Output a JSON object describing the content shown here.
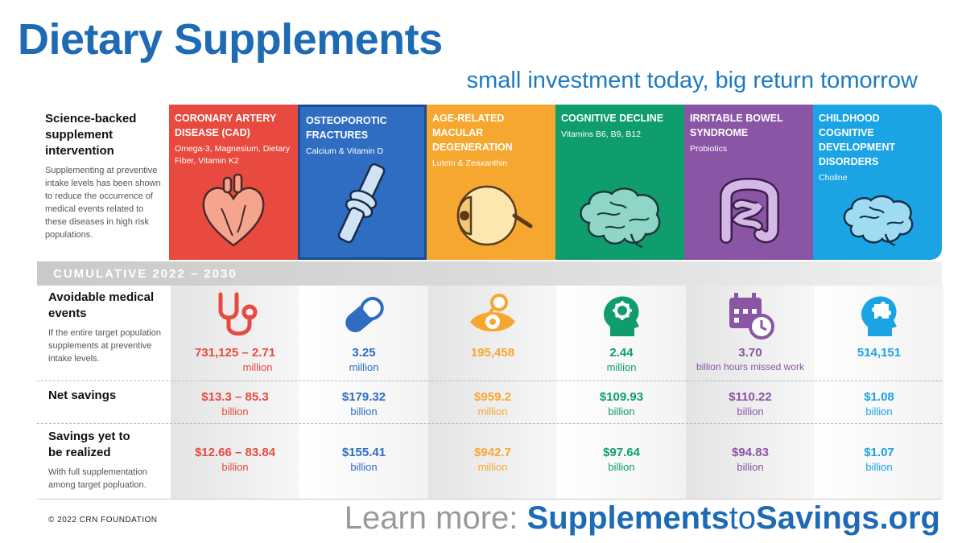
{
  "header": {
    "title": "Dietary Supplements",
    "subtitle": "small investment today, big return tomorrow"
  },
  "intro": {
    "heading": "Science-backed supplement intervention",
    "description": "Supplementing at preventive intake levels has been shown to reduce the occurrence of medical events related to these diseases in high risk populations."
  },
  "band": {
    "label": "CUMULATIVE 2022 – 2030"
  },
  "colors": {
    "cad": "#e84a3f",
    "osteo": "#2f6dc3",
    "macular": "#f6a72f",
    "cognitive": "#0f9d6e",
    "ibs": "#8a55a4",
    "child": "#1ba4e4"
  },
  "diseases": [
    {
      "name": "CORONARY ARTERY DISEASE (CAD)",
      "supplements": "Omega-3, Magnesium, Dietary Fiber, Vitamin K2",
      "icon": "heart-icon"
    },
    {
      "name": "OSTEOPOROTIC FRACTURES",
      "supplements": "Calcium & Vitamin D",
      "icon": "bone-joint-icon"
    },
    {
      "name": "AGE-RELATED MACULAR DEGENERATION",
      "supplements": "Lutein & Zeaxanthin",
      "icon": "eyeball-icon"
    },
    {
      "name": "COGNITIVE DECLINE",
      "supplements": "Vitamins B6, B9, B12",
      "icon": "brain-icon"
    },
    {
      "name": "IRRITABLE BOWEL SYNDROME",
      "supplements": "Probiotics",
      "icon": "intestine-icon"
    },
    {
      "name": "CHILDHOOD COGNITIVE DEVELOPMENT DISORDERS",
      "supplements": "Choline",
      "icon": "child-brain-icon"
    }
  ],
  "metrics": {
    "avoidable": {
      "heading": "Avoidable medical events",
      "description": "If the entire target population supplements at preventive intake levels.",
      "values": [
        {
          "value": "731,125 – 2.71",
          "unit": "million",
          "icon": "stethoscope-icon"
        },
        {
          "value": "3.25",
          "unit": "million",
          "icon": "pill-capsule-icon"
        },
        {
          "value": "195,458",
          "unit": "",
          "icon": "eye-exam-icon"
        },
        {
          "value": "2.44",
          "unit": "million",
          "icon": "head-gear-icon"
        },
        {
          "value": "3.70",
          "unit": "billion hours missed work",
          "icon": "calendar-clock-icon"
        },
        {
          "value": "514,151",
          "unit": "",
          "icon": "head-puzzle-icon"
        }
      ]
    },
    "net_savings": {
      "heading": "Net savings",
      "values": [
        {
          "value": "$13.3 – 85.3",
          "unit": "billion"
        },
        {
          "value": "$179.32",
          "unit": "billion"
        },
        {
          "value": "$959.2",
          "unit": "million"
        },
        {
          "value": "$109.93",
          "unit": "billion"
        },
        {
          "value": "$110.22",
          "unit": "billion"
        },
        {
          "value": "$1.08",
          "unit": "billion"
        }
      ]
    },
    "yet_to_realize": {
      "heading": "Savings yet to be realized",
      "description": "With full supplementation among target popluation.",
      "values": [
        {
          "value": "$12.66 – 83.84",
          "unit": "billion"
        },
        {
          "value": "$155.41",
          "unit": "billion"
        },
        {
          "value": "$942.7",
          "unit": "million"
        },
        {
          "value": "$97.64",
          "unit": "billion"
        },
        {
          "value": "$94.83",
          "unit": "billion"
        },
        {
          "value": "$1.07",
          "unit": "billion"
        }
      ]
    }
  },
  "footer": {
    "copyright": "© 2022 CRN FOUNDATION",
    "learn_prefix": "Learn more: ",
    "link_a": "Supplements",
    "link_mid": "to",
    "link_b": "Savings.org"
  }
}
